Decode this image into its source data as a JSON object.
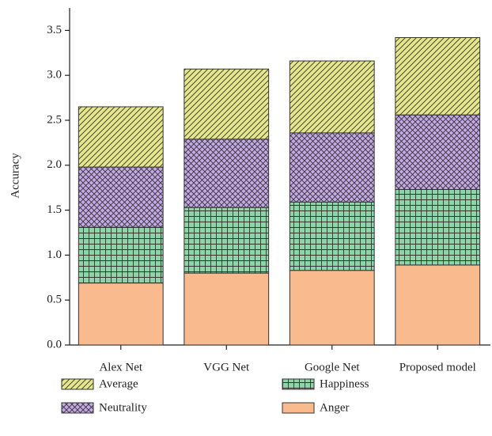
{
  "chart_data": {
    "type": "stacked_bar",
    "y_label": "Accuracy",
    "categories": [
      "Alex Net",
      "VGG Net",
      "Google Net",
      "Proposed model"
    ],
    "series": [
      {
        "name": "Anger",
        "color": "#f9bb8e",
        "pattern": "solid",
        "values": [
          0.69,
          0.8,
          0.83,
          0.89
        ]
      },
      {
        "name": "Happiness",
        "color": "#8fd4a6",
        "pattern": "grid",
        "values": [
          0.62,
          0.73,
          0.76,
          0.84
        ]
      },
      {
        "name": "Neutrality",
        "color": "#c6a8e6",
        "pattern": "cross",
        "values": [
          0.67,
          0.76,
          0.77,
          0.83
        ]
      },
      {
        "name": "Average",
        "color": "#e6e68a",
        "pattern": "hatch",
        "values": [
          0.67,
          0.78,
          0.8,
          0.86
        ]
      }
    ],
    "legend_order": [
      3,
      1,
      2,
      0
    ],
    "ylim": [
      0,
      3.75
    ],
    "yticks": [
      {
        "value": 0,
        "label": "0.0"
      },
      0.5,
      {
        "value": 1,
        "label": "1.0"
      },
      1.5,
      {
        "value": 2,
        "label": "2.0"
      },
      2.5,
      {
        "value": 3,
        "label": "3.0"
      },
      3.5
    ]
  }
}
